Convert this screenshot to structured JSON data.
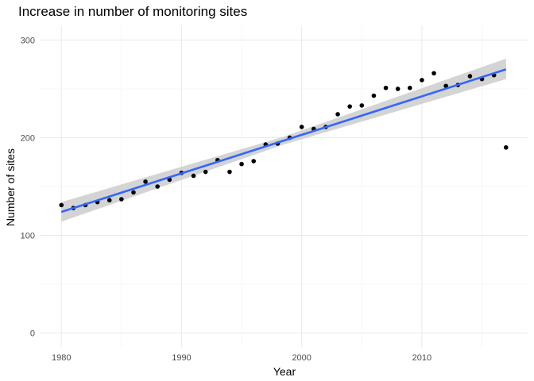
{
  "chart_data": {
    "type": "scatter",
    "title": "Increase in number of monitoring sites",
    "xlabel": "Year",
    "ylabel": "Number of sites",
    "xlim": [
      1978.2,
      2018.8
    ],
    "ylim": [
      -15,
      315
    ],
    "x_ticks": [
      1980,
      1990,
      2000,
      2010
    ],
    "x_tick_labels": [
      "1980",
      "1990",
      "2000",
      "2010"
    ],
    "y_ticks": [
      0,
      100,
      200,
      300
    ],
    "y_tick_labels": [
      "0",
      "100",
      "200",
      "300"
    ],
    "grid": true,
    "points": {
      "x": [
        1980,
        1981,
        1982,
        1983,
        1984,
        1985,
        1986,
        1987,
        1988,
        1989,
        1990,
        1991,
        1992,
        1993,
        1994,
        1995,
        1996,
        1997,
        1998,
        1999,
        2000,
        2001,
        2002,
        2003,
        2004,
        2005,
        2006,
        2007,
        2008,
        2009,
        2010,
        2011,
        2012,
        2013,
        2014,
        2015,
        2016,
        2017
      ],
      "y": [
        131,
        128,
        131,
        134,
        136,
        137,
        144,
        155,
        150,
        157,
        164,
        161,
        165,
        177,
        165,
        173,
        176,
        193,
        194,
        200,
        211,
        209,
        211,
        224,
        232,
        233,
        243,
        251,
        250,
        251,
        259,
        266,
        253,
        254,
        263,
        260,
        264,
        190
      ],
      "color": "#000000"
    },
    "trend_line": {
      "method": "linear",
      "x": [
        1980,
        2017
      ],
      "y": [
        124,
        270
      ],
      "confidence_band": {
        "x": [
          1980,
          1998.5,
          2017
        ],
        "lower": [
          114,
          193,
          260
        ],
        "upper": [
          134,
          201,
          281
        ]
      },
      "line_color": "#3366ff",
      "band_color": "#cccccc"
    }
  }
}
